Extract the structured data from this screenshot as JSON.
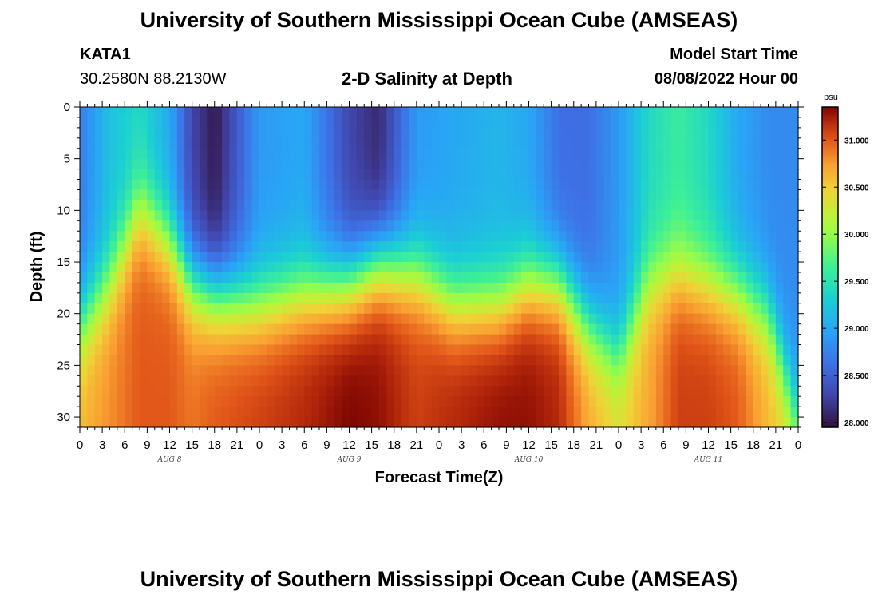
{
  "header": {
    "title": "University of Southern Mississippi Ocean Cube (AMSEAS)",
    "station": "KATA1",
    "coords": "30.2580N  88.2130W",
    "subtitle": "2-D Salinity at Depth",
    "model_start_label": "Model Start Time",
    "model_start_value": "08/08/2022 Hour 00"
  },
  "footer": {
    "title": "University of Southern Mississippi Ocean Cube (AMSEAS)"
  },
  "chart_data": {
    "type": "heatmap",
    "title": "2-D Salinity at Depth",
    "xlabel": "Forecast Time(Z)",
    "ylabel": "Depth (ft)",
    "x_range_hours": [
      0,
      96
    ],
    "x_ticks": [
      "0",
      "3",
      "6",
      "9",
      "12",
      "15",
      "18",
      "21",
      "0",
      "3",
      "6",
      "9",
      "12",
      "15",
      "18",
      "21",
      "0",
      "3",
      "6",
      "9",
      "12",
      "15",
      "18",
      "21",
      "0",
      "3",
      "6",
      "9",
      "12",
      "15",
      "18",
      "21",
      "0"
    ],
    "day_labels": [
      {
        "label": "AUG 8",
        "hour": 12
      },
      {
        "label": "AUG 9",
        "hour": 36
      },
      {
        "label": "AUG 10",
        "hour": 60
      },
      {
        "label": "AUG 11",
        "hour": 84
      }
    ],
    "y_ticks": [
      0,
      5,
      10,
      15,
      20,
      25,
      30
    ],
    "y_range_ft": [
      0,
      31
    ],
    "colorbar": {
      "unit": "psu",
      "range": [
        27.95,
        31.35
      ],
      "ticks": [
        "28.000",
        "28.500",
        "29.000",
        "29.500",
        "30.000",
        "30.500",
        "31.000"
      ]
    },
    "description": "Salinity (psu) vs forecast hour (0-96) and depth (0-31 ft); fresher surface layer (~28.0-29.0 psu) over saltier bottom water (~30.5-31.3 psu) with an oscillating halocline between ~10 and ~20 ft.",
    "halocline_depth_ft": {
      "hours": [
        0,
        4,
        8,
        12,
        15,
        18,
        24,
        30,
        36,
        40,
        45,
        50,
        56,
        60,
        64,
        68,
        72,
        76,
        80,
        84,
        88,
        92,
        96
      ],
      "values": [
        21,
        17,
        10,
        13,
        17,
        18,
        19,
        18,
        17,
        15,
        16,
        19,
        19,
        17,
        17,
        21,
        24,
        17,
        16,
        17,
        18,
        20,
        30
      ]
    },
    "surface_salinity_psu": {
      "hours": [
        0,
        4,
        8,
        12,
        15,
        18,
        24,
        30,
        36,
        40,
        45,
        50,
        56,
        60,
        64,
        68,
        72,
        76,
        80,
        84,
        88,
        92,
        96
      ],
      "values": [
        28.7,
        29.2,
        29.4,
        29.0,
        28.3,
        28.0,
        28.9,
        29.0,
        28.3,
        28.1,
        28.9,
        29.0,
        29.1,
        29.0,
        28.6,
        28.6,
        28.9,
        29.4,
        29.6,
        29.4,
        29.0,
        28.8,
        28.8
      ]
    },
    "bottom_salinity_psu": {
      "hours": [
        0,
        4,
        8,
        12,
        15,
        18,
        24,
        30,
        36,
        40,
        45,
        50,
        56,
        60,
        64,
        68,
        72,
        76,
        80,
        84,
        88,
        92,
        96
      ],
      "values": [
        30.6,
        30.8,
        31.0,
        31.0,
        30.9,
        31.0,
        31.1,
        31.2,
        31.35,
        31.3,
        31.1,
        31.2,
        31.3,
        31.3,
        31.2,
        30.7,
        30.4,
        30.7,
        31.1,
        31.1,
        31.0,
        30.6,
        30.3
      ]
    }
  }
}
